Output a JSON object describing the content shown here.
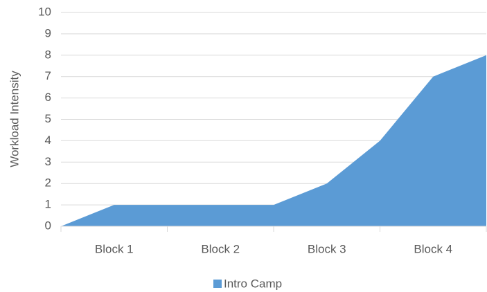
{
  "chart_data": {
    "type": "area",
    "y_label": "Workload Intensity",
    "categories": [
      null,
      "Block 1",
      null,
      "Block 2",
      null,
      "Block 3",
      null,
      "Block 4",
      null
    ],
    "series": [
      {
        "name": "Intro Camp",
        "color": "#5b9bd5",
        "values": [
          0,
          1,
          1,
          1,
          1,
          2,
          4,
          7,
          8
        ]
      }
    ],
    "ylim": [
      0,
      10
    ],
    "yticks": [
      0,
      1,
      2,
      3,
      4,
      5,
      6,
      7,
      8,
      9,
      10
    ],
    "grid": true,
    "legend": "bottom"
  }
}
